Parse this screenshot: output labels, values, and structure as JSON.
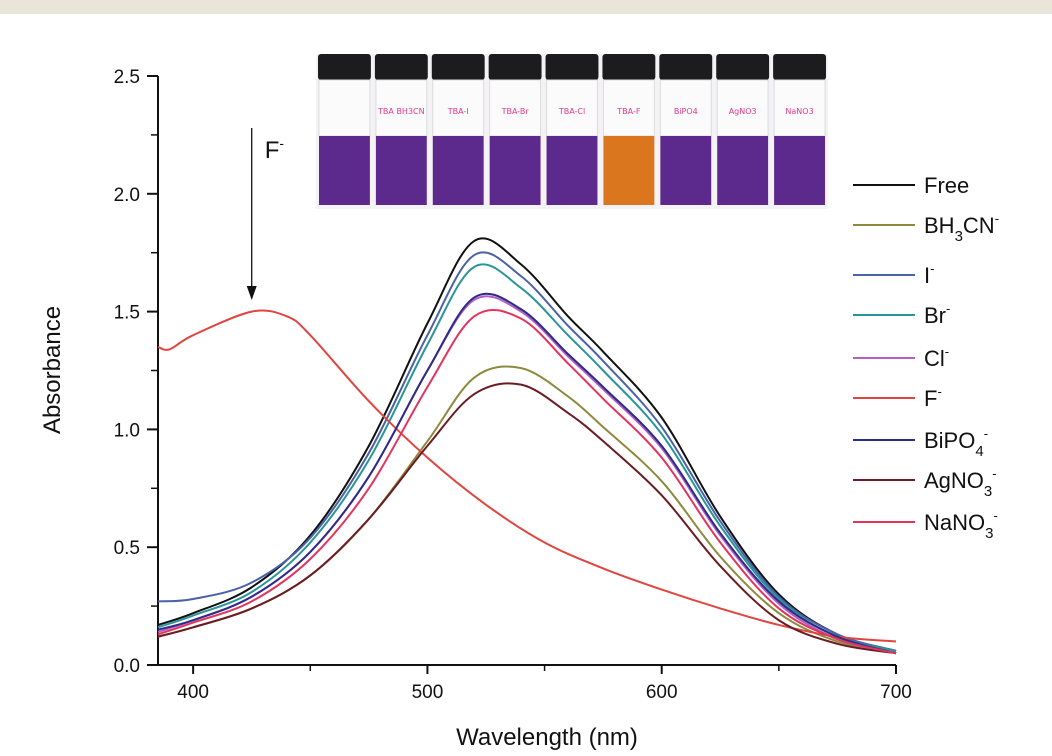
{
  "chart_data": {
    "type": "line",
    "title": "",
    "xlabel": "Wavelength (nm)",
    "ylabel": "Absorbance",
    "xlim": [
      385,
      700
    ],
    "ylim": [
      0,
      2.5
    ],
    "xticks": [
      400,
      500,
      600,
      700
    ],
    "yticks": [
      0.0,
      0.5,
      1.0,
      1.5,
      2.0,
      2.5
    ],
    "ytick_labels": [
      "0.0",
      "0.5",
      "1.0",
      "1.5",
      "2.0",
      "2.5"
    ],
    "grid": false,
    "legend_position": "right",
    "annotation": {
      "text": "F",
      "sup": "-",
      "arrow_at_x": 425
    },
    "series": [
      {
        "name": "Free",
        "label": "Free",
        "sub": "",
        "sup": "",
        "color": "#111111",
        "x": [
          385,
          400,
          425,
          450,
          475,
          500,
          520,
          540,
          560,
          575,
          600,
          625,
          650,
          675,
          700
        ],
        "y": [
          0.17,
          0.22,
          0.33,
          0.55,
          0.93,
          1.45,
          1.8,
          1.7,
          1.48,
          1.33,
          1.05,
          0.63,
          0.3,
          0.13,
          0.06
        ]
      },
      {
        "name": "BH3CN-",
        "label": "BH",
        "sub": "3",
        "label2": "CN",
        "sup": "-",
        "color": "#8c8a3c",
        "x": [
          385,
          400,
          425,
          450,
          475,
          500,
          520,
          540,
          560,
          575,
          600,
          625,
          650,
          675,
          700
        ],
        "y": [
          0.12,
          0.16,
          0.24,
          0.38,
          0.62,
          0.95,
          1.22,
          1.26,
          1.14,
          1.01,
          0.78,
          0.46,
          0.22,
          0.1,
          0.05
        ]
      },
      {
        "name": "I-",
        "label": "I",
        "sub": "",
        "sup": "-",
        "color": "#4a62a6",
        "x": [
          385,
          400,
          425,
          450,
          475,
          500,
          520,
          540,
          560,
          575,
          600,
          625,
          650,
          675,
          700
        ],
        "y": [
          0.27,
          0.28,
          0.35,
          0.54,
          0.9,
          1.4,
          1.74,
          1.65,
          1.44,
          1.29,
          1.01,
          0.61,
          0.29,
          0.13,
          0.06
        ]
      },
      {
        "name": "Br-",
        "label": "Br",
        "sub": "",
        "sup": "-",
        "color": "#2a9598",
        "x": [
          385,
          400,
          425,
          450,
          475,
          500,
          520,
          540,
          560,
          575,
          600,
          625,
          650,
          675,
          700
        ],
        "y": [
          0.16,
          0.21,
          0.31,
          0.52,
          0.87,
          1.36,
          1.69,
          1.6,
          1.4,
          1.25,
          0.98,
          0.59,
          0.28,
          0.12,
          0.06
        ]
      },
      {
        "name": "Cl-",
        "label": "Cl",
        "sub": "",
        "sup": "-",
        "color": "#b25ec4",
        "x": [
          385,
          400,
          425,
          450,
          475,
          500,
          520,
          540,
          560,
          575,
          600,
          625,
          650,
          675,
          700
        ],
        "y": [
          0.14,
          0.19,
          0.29,
          0.48,
          0.8,
          1.25,
          1.55,
          1.5,
          1.31,
          1.17,
          0.92,
          0.55,
          0.26,
          0.11,
          0.05
        ]
      },
      {
        "name": "F-",
        "label": "F",
        "sub": "",
        "sup": "-",
        "color": "#e0453f",
        "x": [
          385,
          390,
          400,
          425,
          440,
          450,
          475,
          500,
          525,
          550,
          575,
          600,
          625,
          650,
          675,
          700
        ],
        "y": [
          1.35,
          1.34,
          1.4,
          1.5,
          1.48,
          1.4,
          1.12,
          0.88,
          0.68,
          0.52,
          0.41,
          0.32,
          0.24,
          0.17,
          0.12,
          0.1
        ]
      },
      {
        "name": "BiPO4-",
        "label": "BiPO",
        "sub": "4",
        "sup": "-",
        "color": "#2b2b8a",
        "x": [
          385,
          400,
          425,
          450,
          475,
          500,
          520,
          540,
          560,
          575,
          600,
          625,
          650,
          675,
          700
        ],
        "y": [
          0.15,
          0.19,
          0.29,
          0.48,
          0.8,
          1.25,
          1.56,
          1.51,
          1.32,
          1.18,
          0.93,
          0.56,
          0.27,
          0.12,
          0.05
        ]
      },
      {
        "name": "AgNO3-",
        "label": "AgNO",
        "sub": "3",
        "sup": "-",
        "color": "#6b1c22",
        "x": [
          385,
          400,
          425,
          450,
          475,
          500,
          520,
          540,
          560,
          575,
          600,
          625,
          650,
          675,
          700
        ],
        "y": [
          0.12,
          0.16,
          0.24,
          0.38,
          0.62,
          0.93,
          1.15,
          1.19,
          1.07,
          0.95,
          0.72,
          0.42,
          0.19,
          0.09,
          0.05
        ]
      },
      {
        "name": "NaNO3-",
        "label": "NaNO",
        "sub": "3",
        "sup": "-",
        "color": "#e2345e",
        "x": [
          385,
          400,
          425,
          450,
          475,
          500,
          520,
          540,
          560,
          575,
          600,
          625,
          650,
          675,
          700
        ],
        "y": [
          0.13,
          0.18,
          0.27,
          0.45,
          0.75,
          1.18,
          1.48,
          1.47,
          1.28,
          1.13,
          0.88,
          0.52,
          0.24,
          0.11,
          0.05
        ]
      }
    ]
  },
  "photo": {
    "vial_labels": [
      "",
      "TBA BH3CN",
      "TBA-I",
      "TBA-Br",
      "TBA-Cl",
      "TBA-F",
      "BiPO4",
      "AgNO3",
      "NaNO3"
    ],
    "solution_colors": [
      "#5b2a8c",
      "#5b2a8c",
      "#5b2a8c",
      "#5b2a8c",
      "#5b2a8c",
      "#d9761e",
      "#5b2a8c",
      "#5b2a8c",
      "#5b2a8c"
    ]
  }
}
